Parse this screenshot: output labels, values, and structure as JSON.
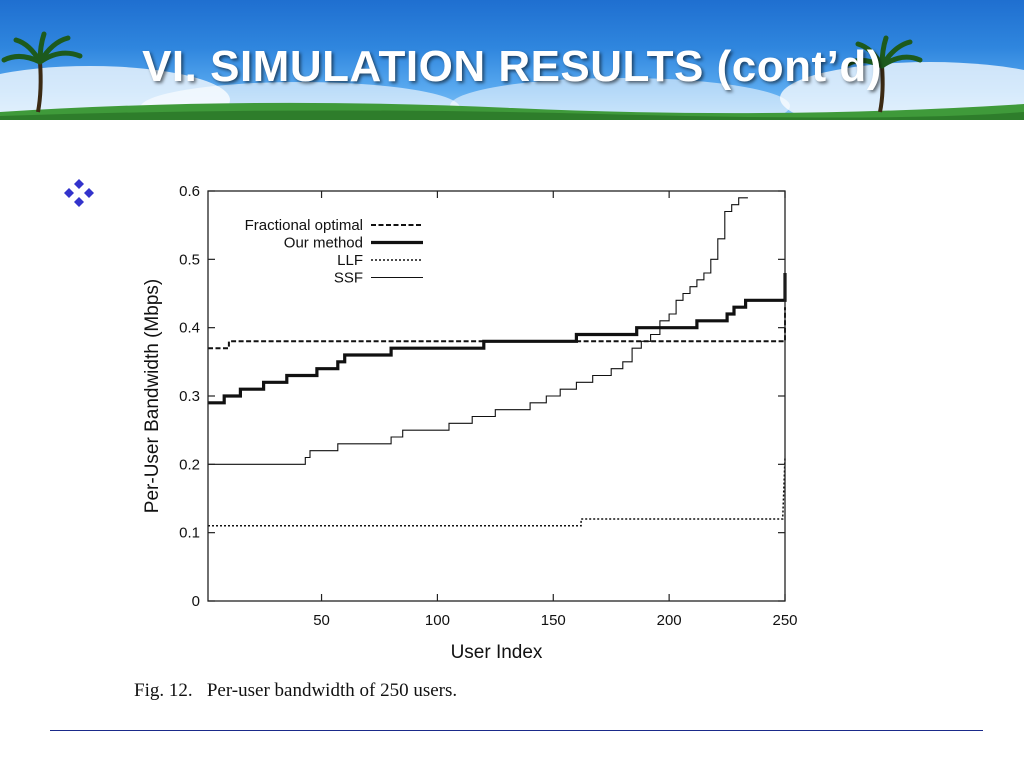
{
  "slide": {
    "title": "VI. SIMULATION RESULTS (cont’d)",
    "caption": "Fig. 12.   Per-user bandwidth of 250 users.",
    "bullet_icon": "four-diamond-bullet-icon",
    "accent_color": "#3333cc"
  },
  "chart_data": {
    "type": "line",
    "title": "",
    "xlabel": "User Index",
    "ylabel": "Per-User Bandwidth (Mbps)",
    "xlim": [
      1,
      250
    ],
    "ylim": [
      0,
      0.6
    ],
    "xticks": [
      50,
      100,
      150,
      200,
      250
    ],
    "yticks": [
      0,
      0.1,
      0.2,
      0.3,
      0.4,
      0.5,
      0.6
    ],
    "grid": false,
    "legend_position": "top-left",
    "series": [
      {
        "name": "Fractional optimal",
        "style": "dashed",
        "x": [
          1,
          10,
          10,
          250,
          250
        ],
        "y": [
          0.37,
          0.37,
          0.38,
          0.38,
          0.43
        ]
      },
      {
        "name": "Our method",
        "style": "thick",
        "x": [
          1,
          8,
          8,
          15,
          15,
          25,
          25,
          35,
          35,
          48,
          48,
          57,
          57,
          60,
          60,
          80,
          80,
          120,
          120,
          160,
          160,
          186,
          186,
          200,
          200,
          212,
          212,
          225,
          225,
          228,
          228,
          233,
          233,
          249,
          249,
          250,
          250
        ],
        "y": [
          0.29,
          0.29,
          0.3,
          0.3,
          0.31,
          0.31,
          0.32,
          0.32,
          0.33,
          0.33,
          0.34,
          0.34,
          0.35,
          0.35,
          0.36,
          0.36,
          0.37,
          0.37,
          0.38,
          0.38,
          0.39,
          0.39,
          0.4,
          0.4,
          0.4,
          0.4,
          0.41,
          0.41,
          0.42,
          0.42,
          0.43,
          0.43,
          0.44,
          0.44,
          0.44,
          0.44,
          0.48
        ]
      },
      {
        "name": "LLF",
        "style": "dotted",
        "x": [
          1,
          162,
          162,
          249,
          249,
          250
        ],
        "y": [
          0.11,
          0.11,
          0.12,
          0.12,
          0.12,
          0.21
        ]
      },
      {
        "name": "SSF",
        "style": "thin",
        "x": [
          1,
          43,
          43,
          45,
          45,
          57,
          57,
          80,
          80,
          85,
          85,
          105,
          105,
          110,
          110,
          115,
          115,
          125,
          125,
          140,
          140,
          147,
          147,
          153,
          153,
          160,
          160,
          167,
          167,
          175,
          175,
          180,
          180,
          184,
          184,
          188,
          188,
          192,
          192,
          196,
          196,
          200,
          200,
          203,
          203,
          206,
          206,
          209,
          209,
          212,
          212,
          215,
          215,
          218,
          218,
          221,
          221,
          224,
          224,
          227,
          227,
          230,
          230,
          234
        ],
        "y": [
          0.2,
          0.2,
          0.21,
          0.21,
          0.22,
          0.22,
          0.23,
          0.23,
          0.24,
          0.24,
          0.25,
          0.25,
          0.26,
          0.26,
          0.26,
          0.26,
          0.27,
          0.27,
          0.28,
          0.28,
          0.29,
          0.29,
          0.3,
          0.3,
          0.31,
          0.31,
          0.32,
          0.32,
          0.33,
          0.33,
          0.34,
          0.34,
          0.35,
          0.35,
          0.37,
          0.37,
          0.38,
          0.38,
          0.39,
          0.39,
          0.41,
          0.41,
          0.42,
          0.42,
          0.44,
          0.44,
          0.45,
          0.45,
          0.46,
          0.46,
          0.47,
          0.47,
          0.48,
          0.48,
          0.5,
          0.5,
          0.53,
          0.53,
          0.57,
          0.57,
          0.58,
          0.58,
          0.59,
          0.59
        ]
      }
    ]
  }
}
